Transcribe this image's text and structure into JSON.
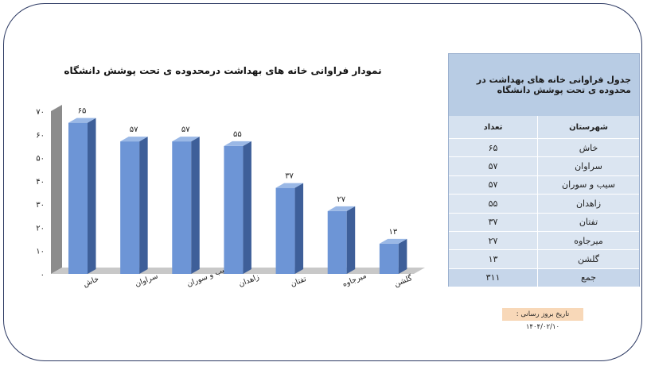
{
  "chart_data": {
    "type": "bar",
    "title": "نمودار فراوانی خانه های بهداشت درمحدوده ی تحت پوشش دانشگاه",
    "categories": [
      "خاش",
      "سراوان",
      "سیب و سوران",
      "زاهدان",
      "تفتان",
      "میرجاوه",
      "گلشن"
    ],
    "values": [
      65,
      57,
      57,
      55,
      37,
      27,
      13
    ],
    "value_labels": [
      "۶۵",
      "۵۷",
      "۵۷",
      "۵۵",
      "۳۷",
      "۲۷",
      "۱۳"
    ],
    "ylim": [
      0,
      70
    ],
    "y_ticks": [
      0,
      10,
      20,
      30,
      40,
      50,
      60,
      70
    ],
    "y_tick_labels": [
      "۰",
      "۱۰",
      "۲۰",
      "۳۰",
      "۴۰",
      "۵۰",
      "۶۰",
      "۷۰"
    ],
    "xlabel": "",
    "ylabel": "",
    "grid": false,
    "style": "3d-column",
    "colors": {
      "bar_front": "#6d95d6",
      "bar_side": "#3e5f99",
      "bar_top": "#9ab8e6",
      "wall": "#8c8c8c"
    }
  },
  "table": {
    "title": "جدول فراوانی خانه های بهداشت در محدوده ی تحت پوشش دانشگاه",
    "headers": {
      "name": "شهرستان",
      "count": "تعداد"
    },
    "rows": [
      {
        "name": "خاش",
        "count": "۶۵"
      },
      {
        "name": "سراوان",
        "count": "۵۷"
      },
      {
        "name": "سیب و سوران",
        "count": "۵۷"
      },
      {
        "name": "زاهدان",
        "count": "۵۵"
      },
      {
        "name": "تفتان",
        "count": "۳۷"
      },
      {
        "name": "میرجاوه",
        "count": "۲۷"
      },
      {
        "name": "گلشن",
        "count": "۱۳"
      }
    ],
    "total": {
      "name": "جمع",
      "count": "۳۱۱"
    },
    "colors": {
      "header": "#b8cce4",
      "body": "#dbe5f1",
      "total": "#c6d6ea"
    }
  },
  "update_note": "تاریخ بروز رسانی : ۱۴۰۴/۰۲/۱۰"
}
